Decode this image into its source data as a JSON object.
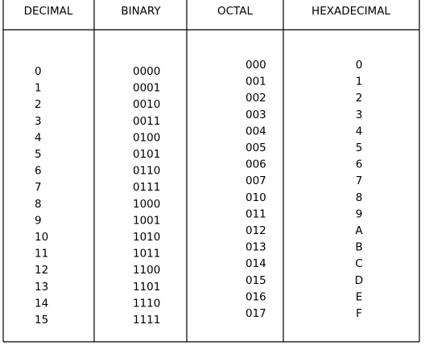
{
  "table": {
    "header": [
      "DECIMAL",
      "BINARY",
      "OCTAL",
      "HEXADECIMAL"
    ],
    "rows": [
      [
        "0",
        "0000",
        "000",
        "0"
      ],
      [
        "1",
        "0001",
        "001",
        "1"
      ],
      [
        "2",
        "0010",
        "002",
        "2"
      ],
      [
        "3",
        "0011",
        "003",
        "3"
      ],
      [
        "4",
        "0100",
        "004",
        "4"
      ],
      [
        "5",
        "0101",
        "005",
        "5"
      ],
      [
        "6",
        "0110",
        "006",
        "6"
      ],
      [
        "7",
        "0111",
        "007",
        "7"
      ],
      [
        "8",
        "1000",
        "010",
        "8"
      ],
      [
        "9",
        "1001",
        "011",
        "9"
      ],
      [
        "10",
        "1010",
        "012",
        "A"
      ],
      [
        "11",
        "1011",
        "013",
        "B"
      ],
      [
        "12",
        "1100",
        "014",
        "C"
      ],
      [
        "13",
        "1101",
        "015",
        "D"
      ],
      [
        "14",
        "1110",
        "016",
        "E"
      ],
      [
        "15",
        "1111",
        "017",
        "F"
      ]
    ]
  }
}
